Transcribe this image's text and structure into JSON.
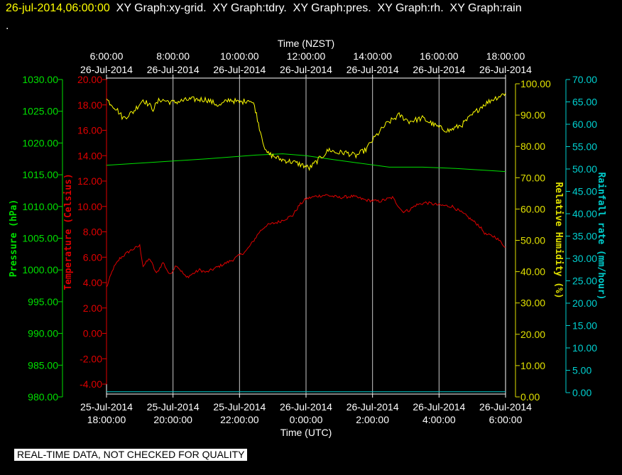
{
  "header": {
    "timestamp": "26-jul-2014,06:00:00",
    "graphs": [
      "XY Graph:xy-grid.",
      "XY Graph:tdry.",
      "XY Graph:pres.",
      "XY Graph:rh.",
      "XY Graph:rain"
    ],
    "dot": "."
  },
  "footer": {
    "quality_note": "REAL-TIME DATA, NOT CHECKED FOR QUALITY"
  },
  "chart_data": {
    "type": "line",
    "top_axis": {
      "title": "Time (NZST)",
      "ticks": [
        [
          "6:00:00",
          "26-Jul-2014"
        ],
        [
          "8:00:00",
          "26-Jul-2014"
        ],
        [
          "10:00:00",
          "26-Jul-2014"
        ],
        [
          "12:00:00",
          "26-Jul-2014"
        ],
        [
          "14:00:00",
          "26-Jul-2014"
        ],
        [
          "16:00:00",
          "26-Jul-2014"
        ],
        [
          "18:00:00",
          "26-Jul-2014"
        ]
      ]
    },
    "bottom_axis": {
      "title": "Time (UTC)",
      "ticks": [
        [
          "25-Jul-2014",
          "18:00:00"
        ],
        [
          "25-Jul-2014",
          "20:00:00"
        ],
        [
          "25-Jul-2014",
          "22:00:00"
        ],
        [
          "26-Jul-2014",
          "0:00:00"
        ],
        [
          "26-Jul-2014",
          "2:00:00"
        ],
        [
          "26-Jul-2014",
          "4:00:00"
        ],
        [
          "26-Jul-2014",
          "6:00:00"
        ]
      ]
    },
    "x_utc_hours_range": [
      -6,
      6
    ],
    "grid": true,
    "axes": {
      "pressure": {
        "label": "Pressure (hPa)",
        "color": "#00e000",
        "range": [
          980,
          1030
        ],
        "ticks": [
          "1030.00",
          "1025.00",
          "1020.00",
          "1015.00",
          "1010.00",
          "1005.00",
          "1000.00",
          "995.00",
          "990.00",
          "985.00",
          "980.00"
        ]
      },
      "temperature": {
        "label": "Temperature (Celsius)",
        "color": "#e00000",
        "range": [
          -4.8,
          20
        ],
        "ticks": [
          "20.00",
          "18.00",
          "16.00",
          "14.00",
          "12.00",
          "10.00",
          "8.00",
          "6.00",
          "4.00",
          "2.00",
          "0.00",
          "-2.00",
          "-4.00"
        ]
      },
      "humidity": {
        "label": "Relative Humidity (%)",
        "color": "#e0e000",
        "range": [
          0,
          100
        ],
        "ticks": [
          "100.00",
          "90.00",
          "80.00",
          "70.00",
          "60.00",
          "50.00",
          "40.00",
          "30.00",
          "20.00",
          "10.00",
          "0.00"
        ]
      },
      "rainfall": {
        "label": "Rainfall rate (mm/hour)",
        "color": "#00d0d0",
        "range": [
          0,
          70
        ],
        "ticks": [
          "70.00",
          "65.00",
          "60.00",
          "55.00",
          "50.00",
          "45.00",
          "40.00",
          "35.00",
          "30.00",
          "25.00",
          "20.00",
          "15.00",
          "10.00",
          "5.00",
          "0.00"
        ]
      }
    },
    "series": [
      {
        "name": "tdry",
        "axis": "temperature",
        "color": "#e00000",
        "noise": 0.12,
        "points": [
          [
            -6,
            3.6
          ],
          [
            -5.8,
            5.1
          ],
          [
            -5.6,
            5.9
          ],
          [
            -5.3,
            6.5
          ],
          [
            -5.0,
            6.9
          ],
          [
            -4.9,
            5.3
          ],
          [
            -4.7,
            5.9
          ],
          [
            -4.5,
            4.7
          ],
          [
            -4.3,
            5.6
          ],
          [
            -4.1,
            4.6
          ],
          [
            -3.9,
            5.4
          ],
          [
            -3.6,
            4.4
          ],
          [
            -3.2,
            5.0
          ],
          [
            -3.0,
            4.8
          ],
          [
            -2.6,
            5.3
          ],
          [
            -2.2,
            5.8
          ],
          [
            -1.8,
            6.5
          ],
          [
            -1.6,
            7.2
          ],
          [
            -1.4,
            8.0
          ],
          [
            -1.2,
            8.5
          ],
          [
            -0.8,
            8.8
          ],
          [
            -0.4,
            9.3
          ],
          [
            -0.2,
            10.1
          ],
          [
            0,
            10.6
          ],
          [
            0.3,
            10.8
          ],
          [
            0.6,
            10.9
          ],
          [
            1.0,
            10.7
          ],
          [
            1.4,
            10.8
          ],
          [
            1.8,
            10.5
          ],
          [
            2.2,
            10.4
          ],
          [
            2.6,
            10.7
          ],
          [
            2.9,
            9.6
          ],
          [
            3.1,
            9.7
          ],
          [
            3.3,
            10.1
          ],
          [
            3.6,
            10.3
          ],
          [
            4.0,
            10.1
          ],
          [
            4.4,
            10.0
          ],
          [
            4.8,
            9.3
          ],
          [
            5.2,
            8.5
          ],
          [
            5.4,
            7.8
          ],
          [
            5.7,
            7.6
          ],
          [
            6,
            6.8
          ]
        ]
      },
      {
        "name": "pres",
        "axis": "pressure",
        "color": "#00e000",
        "noise": 0,
        "points": [
          [
            -6,
            1016.5
          ],
          [
            -4.5,
            1017.0
          ],
          [
            -3,
            1017.5
          ],
          [
            -1.5,
            1018.1
          ],
          [
            -0.7,
            1018.3
          ],
          [
            0,
            1018.0
          ],
          [
            0.8,
            1017.4
          ],
          [
            1.5,
            1016.9
          ],
          [
            2.5,
            1016.2
          ],
          [
            3.5,
            1016.2
          ],
          [
            4.5,
            1016.0
          ],
          [
            6,
            1015.5
          ]
        ]
      },
      {
        "name": "rh",
        "axis": "humidity",
        "color": "#ffff00",
        "noise": 0.9,
        "points": [
          [
            -6,
            95
          ],
          [
            -5.7,
            92
          ],
          [
            -5.5,
            89
          ],
          [
            -5.2,
            91
          ],
          [
            -4.9,
            95
          ],
          [
            -4.6,
            92
          ],
          [
            -4.4,
            95
          ],
          [
            -4.0,
            94
          ],
          [
            -3.5,
            95
          ],
          [
            -3.0,
            95
          ],
          [
            -2.6,
            93
          ],
          [
            -2.3,
            95
          ],
          [
            -2.0,
            94
          ],
          [
            -1.7,
            95
          ],
          [
            -1.55,
            93
          ],
          [
            -1.4,
            86
          ],
          [
            -1.2,
            78
          ],
          [
            -0.8,
            76
          ],
          [
            -0.4,
            75
          ],
          [
            -0.1,
            74
          ],
          [
            0.1,
            73
          ],
          [
            0.4,
            76
          ],
          [
            0.7,
            79
          ],
          [
            0.9,
            78
          ],
          [
            1.2,
            78
          ],
          [
            1.5,
            77
          ],
          [
            1.8,
            79
          ],
          [
            2.0,
            82
          ],
          [
            2.4,
            87
          ],
          [
            2.8,
            90
          ],
          [
            3.1,
            88
          ],
          [
            3.5,
            89
          ],
          [
            4.0,
            86
          ],
          [
            4.3,
            85
          ],
          [
            4.7,
            87
          ],
          [
            5.0,
            90
          ],
          [
            5.3,
            93
          ],
          [
            5.6,
            95
          ],
          [
            5.8,
            96
          ],
          [
            6,
            97
          ]
        ]
      },
      {
        "name": "rain",
        "axis": "rainfall",
        "color": "#00d0d0",
        "noise": 0,
        "points": [
          [
            -6,
            0.2
          ],
          [
            6,
            0.2
          ]
        ]
      }
    ]
  }
}
